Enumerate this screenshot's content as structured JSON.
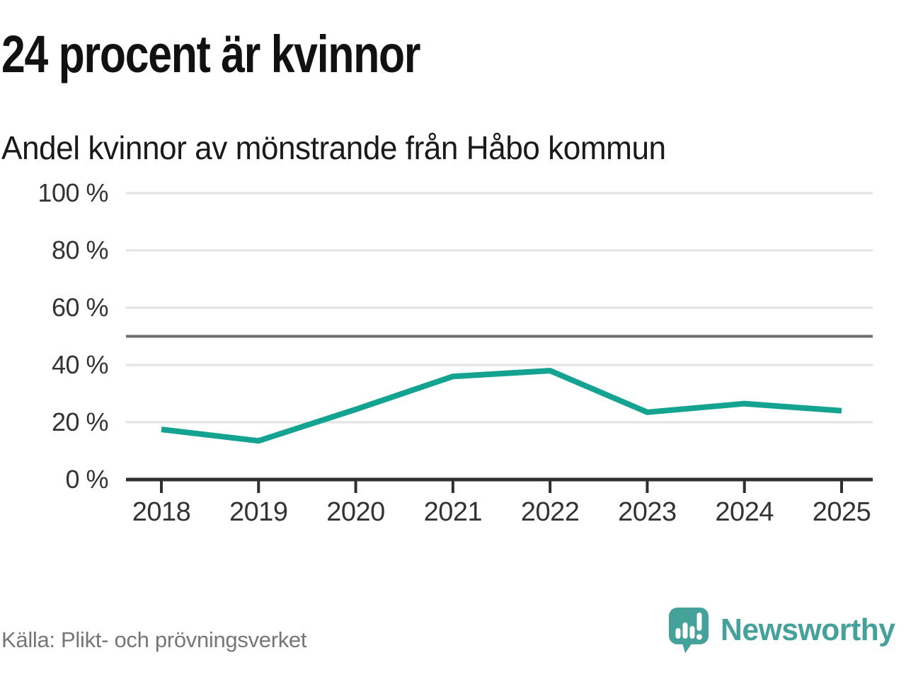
{
  "header": {
    "title": "24 procent är kvinnor",
    "subtitle": "Andel kvinnor av mönstrande från Håbo kommun"
  },
  "footer": {
    "source": "Källa: Plikt- och prövningsverket",
    "brand_name": "Newsworthy"
  },
  "colors": {
    "line": "#14a390",
    "brand_teal": "#44a29a",
    "grid": "#e2e2e2",
    "axis": "#2f2f2f",
    "reference_line": "#6e6e6e",
    "title_text": "#111111",
    "tick_text": "#333333",
    "source_text": "#767676"
  },
  "chart_data": {
    "type": "line",
    "title": "24 procent är kvinnor",
    "subtitle": "Andel kvinnor av mönstrande från Håbo kommun",
    "categories": [
      "2018",
      "2019",
      "2020",
      "2021",
      "2022",
      "2023",
      "2024",
      "2025"
    ],
    "series": [
      {
        "name": "Andel kvinnor av mönstrande",
        "values": [
          17.5,
          13.5,
          24.5,
          36,
          38,
          23.5,
          26.5,
          24
        ]
      }
    ],
    "unit": "%",
    "ylim": [
      0,
      100
    ],
    "yticks": [
      0,
      20,
      40,
      60,
      80,
      100
    ],
    "ytick_suffix": " %",
    "reference_line": 50,
    "grid": "horizontal",
    "legend": "none",
    "latest_value_headline": 24
  }
}
